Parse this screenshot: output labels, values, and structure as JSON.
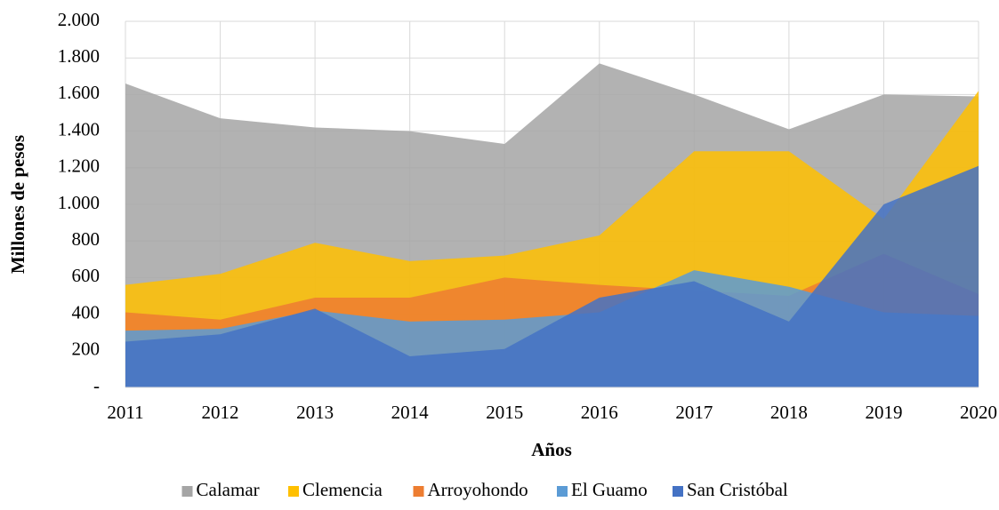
{
  "chart_data": {
    "type": "area",
    "x_label": "Años",
    "y_label": "Millones de pesos",
    "x": [
      2011,
      2012,
      2013,
      2014,
      2015,
      2016,
      2017,
      2018,
      2019,
      2020
    ],
    "xlim": [
      2011,
      2020
    ],
    "ylim": [
      0,
      2000
    ],
    "yticks": [
      {
        "value": 0,
        "label": "-"
      },
      200,
      400,
      600,
      800,
      {
        "value": 1000,
        "label": "1.000"
      },
      {
        "value": 1200,
        "label": "1.200"
      },
      {
        "value": 1400,
        "label": "1.400"
      },
      {
        "value": 1600,
        "label": "1.600"
      },
      {
        "value": 1800,
        "label": "1.800"
      },
      {
        "value": 2000,
        "label": "2.000"
      }
    ],
    "grid": true,
    "legend": "bottom",
    "series": [
      {
        "name": "Calamar",
        "color": "#a5a5a5",
        "values": [
          1660,
          1470,
          1420,
          1400,
          1330,
          1770,
          1600,
          1410,
          1600,
          1590
        ]
      },
      {
        "name": "Clemencia",
        "color": "#ffc000",
        "values": [
          560,
          620,
          790,
          690,
          720,
          830,
          1290,
          1290,
          920,
          1620
        ]
      },
      {
        "name": "Arroyohondo",
        "color": "#ed7d31",
        "values": [
          410,
          370,
          490,
          490,
          600,
          560,
          530,
          500,
          730,
          510
        ]
      },
      {
        "name": "El Guamo",
        "color": "#5b9bd5",
        "values": [
          310,
          320,
          420,
          360,
          370,
          410,
          640,
          550,
          410,
          390
        ]
      },
      {
        "name": "San Cristóbal",
        "color": "#4472c4",
        "values": [
          250,
          290,
          430,
          170,
          210,
          490,
          580,
          360,
          1000,
          1210
        ]
      }
    ]
  }
}
